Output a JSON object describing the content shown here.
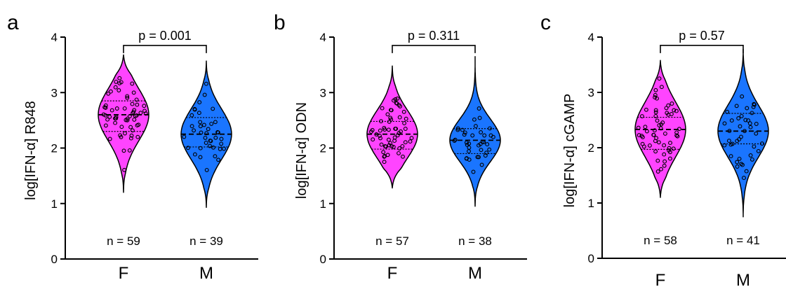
{
  "chart_data": [
    {
      "type": "violin",
      "panel": "a",
      "ylabel": "log[IFN-α] R848",
      "ylim": [
        0,
        4
      ],
      "yticks": [
        "0",
        "1",
        "2",
        "3",
        "4"
      ],
      "categories": [
        "F",
        "M"
      ],
      "colors": [
        "#ff44ff",
        "#1a75ff"
      ],
      "n_labels": [
        "n = 59",
        "n = 39"
      ],
      "p_label": "p = 0.001",
      "medians": [
        2.6,
        2.25
      ],
      "quartiles": [
        [
          2.3,
          2.85
        ],
        [
          2.02,
          2.55
        ]
      ],
      "ranges": [
        [
          1.2,
          3.68
        ],
        [
          0.93,
          3.57
        ]
      ]
    },
    {
      "type": "violin",
      "panel": "b",
      "ylabel": "log[IFN-α] ODN",
      "ylim": [
        0,
        4
      ],
      "yticks": [
        "0",
        "1",
        "2",
        "3",
        "4"
      ],
      "categories": [
        "F",
        "M"
      ],
      "colors": [
        "#ff44ff",
        "#1a75ff"
      ],
      "n_labels": [
        "n = 57",
        "n = 38"
      ],
      "p_label": "p = 0.311",
      "medians": [
        2.25,
        2.14
      ],
      "quartiles": [
        [
          1.98,
          2.48
        ],
        [
          1.9,
          2.35
        ]
      ],
      "ranges": [
        [
          1.28,
          3.48
        ],
        [
          0.95,
          3.65
        ]
      ]
    },
    {
      "type": "violin",
      "panel": "c",
      "ylabel": "log[IFN-α] cGAMP",
      "ylim": [
        0,
        4
      ],
      "yticks": [
        "0",
        "1",
        "2",
        "3",
        "4"
      ],
      "categories": [
        "F",
        "M"
      ],
      "colors": [
        "#ff44ff",
        "#1a75ff"
      ],
      "n_labels": [
        "n = 58",
        "n = 41"
      ],
      "p_label": "p = 0.57",
      "medians": [
        2.33,
        2.3
      ],
      "quartiles": [
        [
          1.97,
          2.55
        ],
        [
          2.07,
          2.62
        ]
      ],
      "ranges": [
        [
          1.1,
          3.58
        ],
        [
          0.75,
          3.78
        ]
      ]
    }
  ]
}
